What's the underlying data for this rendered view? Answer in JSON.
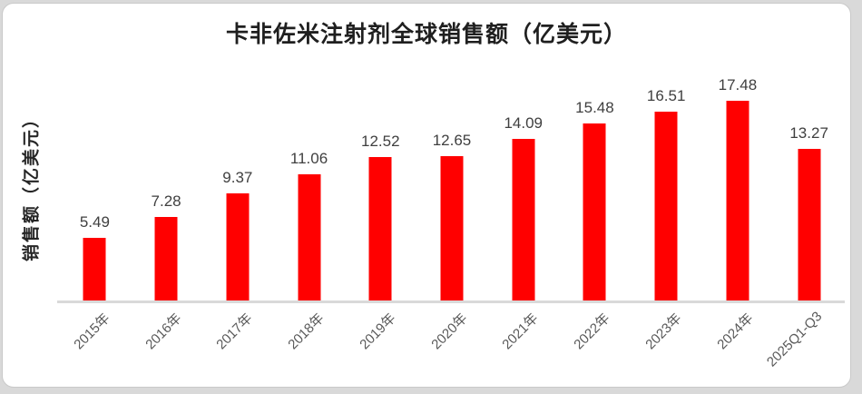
{
  "chart_data": {
    "type": "bar",
    "title": "卡非佐米注射剂全球销售额（亿美元）",
    "ylabel": "销售额（亿美元）",
    "xlabel": "",
    "categories": [
      "2015年",
      "2016年",
      "2017年",
      "2018年",
      "2019年",
      "2020年",
      "2021年",
      "2022年",
      "2023年",
      "2024年",
      "2025Q1-Q3"
    ],
    "values": [
      5.49,
      7.28,
      9.37,
      11.06,
      12.52,
      12.65,
      14.09,
      15.48,
      16.51,
      17.48,
      13.27
    ],
    "ylim": [
      0,
      20
    ],
    "grid": false,
    "legend": false,
    "data_labels": true,
    "x_tick_rotation_deg": 45,
    "bar_color": "#ff0000",
    "value_label_color": "#3f3f3f",
    "tick_label_color": "#595959",
    "axis_line_color": "#d9d9d9",
    "background_color": "#ffffff",
    "frame_color": "#d9d9d9"
  }
}
